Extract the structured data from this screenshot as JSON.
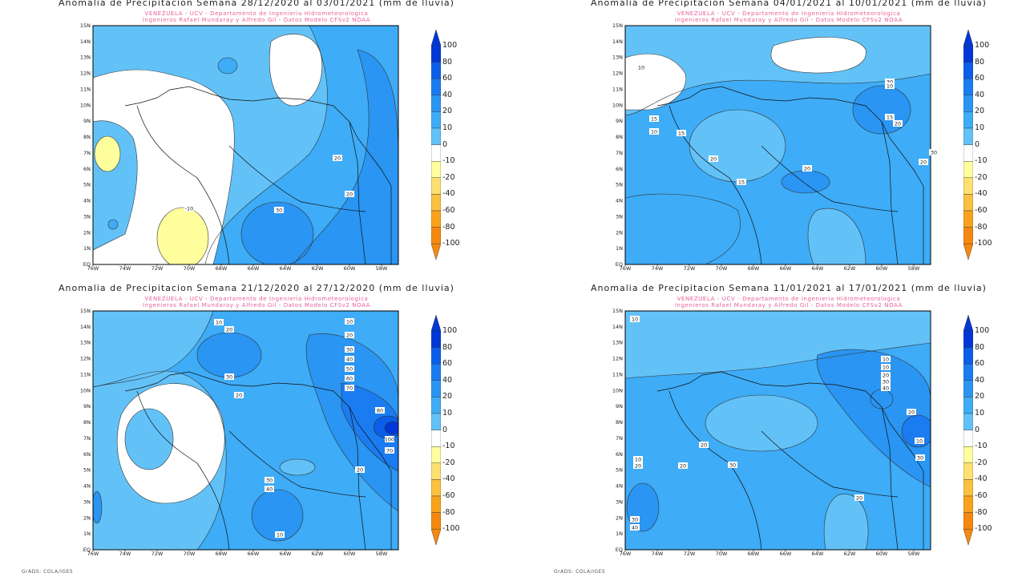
{
  "panels": [
    {
      "title": "Anomalia de Precipitacion Semana 28/12/2020 al 03/01/2021 (mm de lluvia)",
      "subtitle1": "VENEZUELA - UCV - Departamento de Ingenieria Hidrometeorologica",
      "subtitle2": "Ingenieros Rafael Mundaray y Alfredo Gil - Datos Modelo CFSv2 NOAA",
      "contour_labels": [
        "-10",
        "20",
        "30",
        "20"
      ]
    },
    {
      "title": "Anomalia de Precipitacion Semana 04/01/2021 al 10/01/2021 (mm de lluvia)",
      "subtitle1": "VENEZUELA - UCV - Departamento de Ingenieria Hidrometeorologica",
      "subtitle2": "Ingenieros Rafael Mundaray y Alfredo Gil - Datos Modelo CFSv2 NOAA",
      "contour_labels": [
        "10",
        "15",
        "10",
        "15",
        "20",
        "15",
        "20",
        "30",
        "10",
        "15",
        "20",
        "30",
        "20"
      ]
    },
    {
      "title": "Anomalia de Precipitacion Semana 21/12/2020 al 27/12/2020 (mm de lluvia)",
      "subtitle1": "VENEZUELA - UCV - Departamento de Ingenieria Hidrometeorologica",
      "subtitle2": "Ingenieros Rafael Mundaray y Alfredo Gil - Datos Modelo CFSv2 NOAA",
      "contour_labels": [
        "10",
        "20",
        "30",
        "20",
        "10",
        "20",
        "30",
        "40",
        "50",
        "60",
        "70",
        "80",
        "100",
        "70",
        "20",
        "30",
        "40",
        "10"
      ]
    },
    {
      "title": "Anomalia de Precipitacion Semana 11/01/2021 al 17/01/2021 (mm de lluvia)",
      "subtitle1": "VENEZUELA - UCV - Departamento de Ingenieria Hidrometeorologica",
      "subtitle2": "Ingenieros Rafael Mundaray y Alfredo Gil - Datos Modelo CFSv2 NOAA",
      "contour_labels": [
        "10",
        "10",
        "10",
        "20",
        "30",
        "40",
        "20",
        "20",
        "30",
        "10",
        "20",
        "30",
        "40",
        "20",
        "10",
        "30",
        "20"
      ]
    }
  ],
  "axes": {
    "x_ticks": [
      "76W",
      "74W",
      "72W",
      "70W",
      "68W",
      "66W",
      "64W",
      "62W",
      "60W",
      "58W"
    ],
    "y_ticks": [
      "EQ",
      "1N",
      "2N",
      "3N",
      "4N",
      "5N",
      "6N",
      "7N",
      "8N",
      "9N",
      "10N",
      "11N",
      "12N",
      "13N",
      "14N",
      "15N"
    ]
  },
  "colorbar": {
    "labels": [
      "100",
      "80",
      "60",
      "40",
      "20",
      "10",
      "0",
      "-10",
      "-20",
      "-40",
      "-60",
      "-80",
      "-100"
    ],
    "colors": [
      "#0038d8",
      "#0a5ee8",
      "#1a7cf0",
      "#2a95f2",
      "#3eacf6",
      "#62c2f8",
      "#ffffff",
      "#ffff9e",
      "#fde070",
      "#fbc140",
      "#f9a21c",
      "#f68810"
    ]
  },
  "footer": "GrADS: COLA/IGES"
}
